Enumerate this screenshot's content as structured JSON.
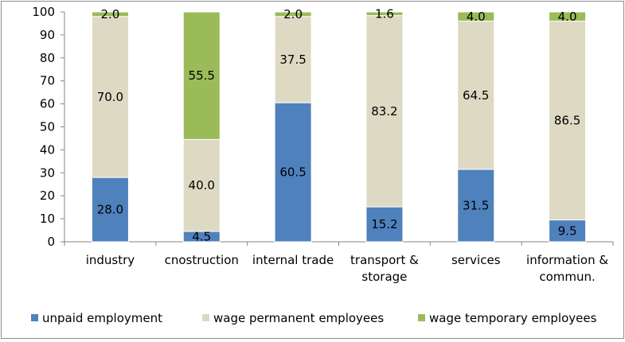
{
  "chart_data": {
    "type": "bar",
    "stacked": true,
    "title": "",
    "xlabel": "",
    "ylabel": "",
    "ylim": [
      0,
      100
    ],
    "yticks": [
      0,
      10,
      20,
      30,
      40,
      50,
      60,
      70,
      80,
      90,
      100
    ],
    "grid": false,
    "legend_position": "bottom",
    "categories": [
      [
        "industry"
      ],
      [
        "cnostruction"
      ],
      [
        "internal trade"
      ],
      [
        "transport &",
        "storage"
      ],
      [
        "services"
      ],
      [
        "information &",
        "commun."
      ]
    ],
    "series": [
      {
        "name": "unpaid employment",
        "color": "#4f81bd",
        "values": [
          28.0,
          4.5,
          60.5,
          15.2,
          31.5,
          9.5
        ],
        "labels": [
          "28.0",
          "4.5",
          "60.5",
          "15.2",
          "31.5",
          "9.5"
        ]
      },
      {
        "name": "wage permanent employees",
        "color": "#ddd9c3",
        "values": [
          70.0,
          40.0,
          37.5,
          83.2,
          64.5,
          86.5
        ],
        "labels": [
          "70.0",
          "40.0",
          "37.5",
          "83.2",
          "64.5",
          "86.5"
        ]
      },
      {
        "name": "wage temporary employees",
        "color": "#9bbb59",
        "values": [
          2.0,
          55.5,
          2.0,
          1.6,
          4.0,
          4.0
        ],
        "labels": [
          "2.0",
          "55.5",
          "2.0",
          "1.6",
          "4.0",
          "4.0"
        ]
      }
    ]
  }
}
